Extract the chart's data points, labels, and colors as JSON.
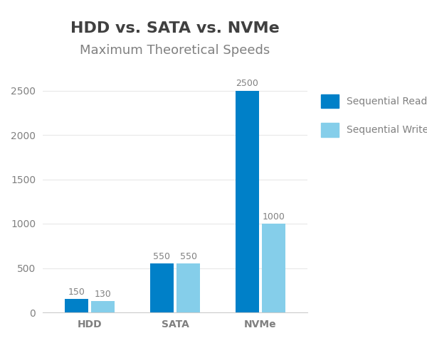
{
  "title": "HDD vs. SATA vs. NVMe",
  "subtitle": "Maximum Theoretical Speeds",
  "categories": [
    "HDD",
    "SATA",
    "NVMe"
  ],
  "sequential_read": [
    150,
    550,
    2500
  ],
  "sequential_write": [
    130,
    550,
    1000
  ],
  "read_color": "#0080C8",
  "write_color": "#85CEEA",
  "label_color": "#808080",
  "title_color": "#404040",
  "background_color": "#ffffff",
  "ylim": [
    0,
    2800
  ],
  "yticks": [
    0,
    500,
    1000,
    1500,
    2000,
    2500
  ],
  "bar_width": 0.28,
  "legend_read": "Sequential Read",
  "legend_write": "Sequential Write",
  "title_fontsize": 16,
  "subtitle_fontsize": 13,
  "label_fontsize": 9,
  "tick_fontsize": 10,
  "legend_fontsize": 10
}
